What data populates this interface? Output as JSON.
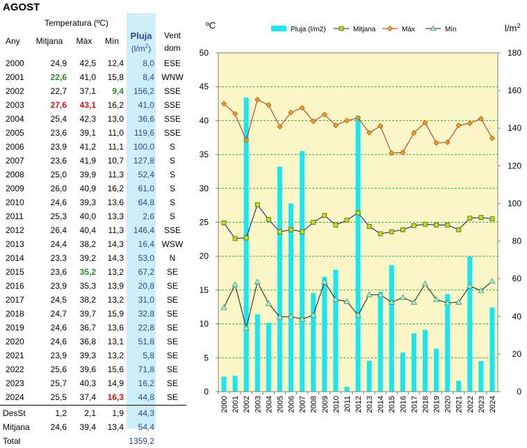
{
  "page": {
    "title": "AGOST"
  },
  "table": {
    "header_group": "Temperatura (ºC)",
    "col_any": "Any",
    "col_mitjana": "Mitjana",
    "col_max": "Màx",
    "col_min": "Mín",
    "col_pluja": "Pluja",
    "col_pluja_unit_base": "(l/m",
    "col_pluja_unit_exp": "2",
    "col_pluja_unit_close": ")",
    "col_vent1": "Vent",
    "col_vent2": "dom",
    "rows": [
      {
        "any": "2000",
        "mit": "24,9",
        "max": "42,5",
        "min": "12,4",
        "plu": "8,0",
        "vent": "ESE"
      },
      {
        "any": "2001",
        "mit": "22,6",
        "max": "41,0",
        "min": "15,8",
        "plu": "8,4",
        "vent": "WNW"
      },
      {
        "any": "2002",
        "mit": "22,7",
        "max": "37,1",
        "min": "9,4",
        "plu": "156,2",
        "vent": "SSE"
      },
      {
        "any": "2003",
        "mit": "27,6",
        "max": "43,1",
        "min": "16,2",
        "plu": "41,0",
        "vent": "SSE"
      },
      {
        "any": "2004",
        "mit": "25,4",
        "max": "42,3",
        "min": "13,0",
        "plu": "36,6",
        "vent": "SSE"
      },
      {
        "any": "2005",
        "mit": "23,6",
        "max": "39,1",
        "min": "11,0",
        "plu": "119,6",
        "vent": "SSE"
      },
      {
        "any": "2006",
        "mit": "23,9",
        "max": "41,2",
        "min": "11,1",
        "plu": "100,0",
        "vent": "S"
      },
      {
        "any": "2007",
        "mit": "23,6",
        "max": "41,9",
        "min": "10,7",
        "plu": "127,8",
        "vent": "S"
      },
      {
        "any": "2008",
        "mit": "25,0",
        "max": "39,9",
        "min": "11,3",
        "plu": "52,4",
        "vent": "S"
      },
      {
        "any": "2009",
        "mit": "26,0",
        "max": "40,9",
        "min": "16,2",
        "plu": "61,0",
        "vent": "S"
      },
      {
        "any": "2010",
        "mit": "24,6",
        "max": "39,3",
        "min": "13,6",
        "plu": "64,8",
        "vent": "S"
      },
      {
        "any": "2011",
        "mit": "25,3",
        "max": "40,0",
        "min": "13,3",
        "plu": "2,6",
        "vent": "S"
      },
      {
        "any": "2012",
        "mit": "26,4",
        "max": "40,4",
        "min": "11,3",
        "plu": "146,4",
        "vent": "SSE"
      },
      {
        "any": "2013",
        "mit": "24,4",
        "max": "38,2",
        "min": "14,3",
        "plu": "16,4",
        "vent": "WSW"
      },
      {
        "any": "2014",
        "mit": "23,3",
        "max": "39,2",
        "min": "14,3",
        "plu": "53,0",
        "vent": "N"
      },
      {
        "any": "2015",
        "mit": "23,6",
        "max": "35,2",
        "min": "13,2",
        "plu": "67,2",
        "vent": "SE"
      },
      {
        "any": "2016",
        "mit": "23,9",
        "max": "35,3",
        "min": "13,9",
        "plu": "20,8",
        "vent": "SE"
      },
      {
        "any": "2017",
        "mit": "24,5",
        "max": "38,2",
        "min": "13,2",
        "plu": "31,0",
        "vent": "SE"
      },
      {
        "any": "2018",
        "mit": "24,7",
        "max": "39,7",
        "min": "15,9",
        "plu": "32,8",
        "vent": "SE"
      },
      {
        "any": "2019",
        "mit": "24,6",
        "max": "36,7",
        "min": "13,6",
        "plu": "22,8",
        "vent": "SE"
      },
      {
        "any": "2020",
        "mit": "24,6",
        "max": "36,8",
        "min": "13,1",
        "plu": "51,8",
        "vent": "SE"
      },
      {
        "any": "2021",
        "mit": "23,9",
        "max": "39,3",
        "min": "13,2",
        "plu": "5,8",
        "vent": "SE"
      },
      {
        "any": "2022",
        "mit": "25,6",
        "max": "39,6",
        "min": "15,6",
        "plu": "71,8",
        "vent": "SE"
      },
      {
        "any": "2023",
        "mit": "25,7",
        "max": "40,3",
        "min": "14,9",
        "plu": "16,2",
        "vent": "SE"
      },
      {
        "any": "2024",
        "mit": "25,5",
        "max": "37,4",
        "min": "16,3",
        "plu": "44,8",
        "vent": "SE"
      }
    ],
    "highlight": {
      "2001": {
        "mit": "green"
      },
      "2002": {
        "min": "green"
      },
      "2003": {
        "mit": "red",
        "max": "red"
      },
      "2015": {
        "max": "green"
      },
      "2024": {
        "min": "red"
      }
    },
    "summary": [
      {
        "label": "DesSt",
        "mit": "1,2",
        "max": "2,1",
        "min": "1,9",
        "plu": "44,3"
      },
      {
        "label": "Mitjana",
        "mit": "24,6",
        "max": "39,4",
        "min": "13,4",
        "plu": "54,4"
      },
      {
        "label": "Total",
        "mit": "",
        "max": "",
        "min": "",
        "plu": "1359,2"
      }
    ]
  },
  "colors": {
    "plot_bg": "#fbf6c6",
    "bars": "#18e6f0",
    "grid": "#2ea84a",
    "mitjana_line": "#0a0a9a",
    "mitjana_marker": "#b8e020",
    "max_line": "#c82020",
    "max_marker": "#f0a020",
    "min_line": "#1a1a1a",
    "min_marker": "#a8ecd0"
  },
  "chart_data": {
    "type": "bar+line",
    "title": "",
    "ylabel_left": "ºC",
    "ylabel_right_base": "l/m",
    "ylabel_right_exp": "2",
    "ylim_left": [
      0,
      50
    ],
    "ylim_right": [
      0,
      180
    ],
    "yticks_left": [
      0,
      5,
      10,
      15,
      20,
      25,
      30,
      35,
      40,
      45,
      50
    ],
    "yticks_right": [
      0,
      20,
      40,
      60,
      80,
      100,
      120,
      140,
      160,
      180
    ],
    "grid": true,
    "legend_placement": "top",
    "categories": [
      "2000",
      "2001",
      "2002",
      "2003",
      "2004",
      "2005",
      "2006",
      "2007",
      "2008",
      "2009",
      "2010",
      "2011",
      "2012",
      "2013",
      "2014",
      "2015",
      "2016",
      "2017",
      "2018",
      "2019",
      "2020",
      "2021",
      "2022",
      "2023",
      "2024"
    ],
    "series": [
      {
        "name": "Pluja (l/m2)",
        "kind": "bar",
        "axis": "right",
        "values": [
          8.0,
          8.4,
          156.2,
          41.0,
          36.6,
          119.6,
          100.0,
          127.8,
          52.4,
          61.0,
          64.8,
          2.6,
          146.4,
          16.4,
          53.0,
          67.2,
          20.8,
          31.0,
          32.8,
          22.8,
          51.8,
          5.8,
          71.8,
          16.2,
          44.8
        ]
      },
      {
        "name": "Mitjana",
        "kind": "line",
        "axis": "left",
        "values": [
          24.9,
          22.6,
          22.7,
          27.6,
          25.4,
          23.6,
          23.9,
          23.6,
          25.0,
          26.0,
          24.6,
          25.3,
          26.4,
          24.4,
          23.3,
          23.6,
          23.9,
          24.5,
          24.7,
          24.6,
          24.6,
          23.9,
          25.6,
          25.7,
          25.5
        ]
      },
      {
        "name": "Màx",
        "kind": "line",
        "axis": "left",
        "values": [
          42.5,
          41.0,
          37.1,
          43.1,
          42.3,
          39.1,
          41.2,
          41.9,
          39.9,
          40.9,
          39.3,
          40.0,
          40.4,
          38.2,
          39.2,
          35.2,
          35.3,
          38.2,
          39.7,
          36.7,
          36.8,
          39.3,
          39.6,
          40.3,
          37.4
        ]
      },
      {
        "name": "Mín",
        "kind": "line",
        "axis": "left",
        "values": [
          12.4,
          15.8,
          9.4,
          16.2,
          13.0,
          11.0,
          11.1,
          10.7,
          11.3,
          16.2,
          13.6,
          13.3,
          11.3,
          14.3,
          14.3,
          13.2,
          13.9,
          13.2,
          15.9,
          13.6,
          13.1,
          13.2,
          15.6,
          14.9,
          16.3
        ]
      }
    ]
  }
}
